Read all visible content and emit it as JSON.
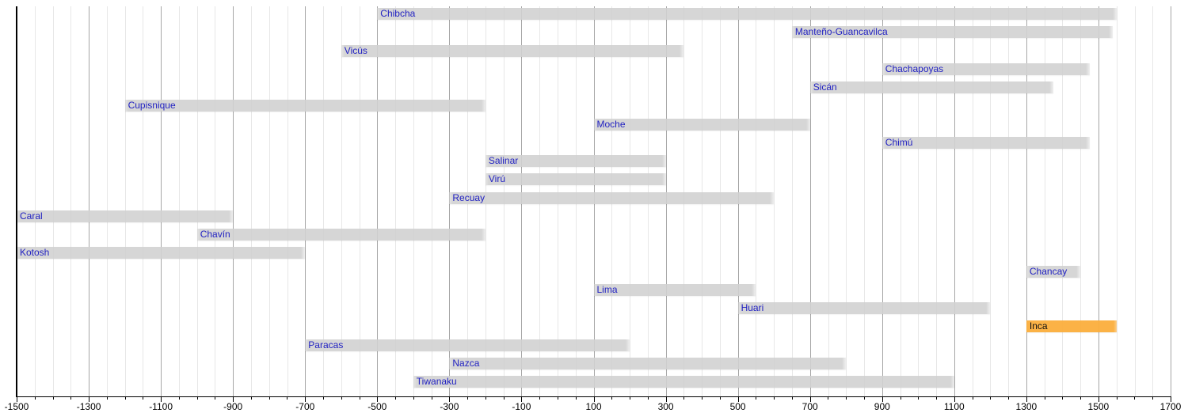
{
  "chart_data": {
    "type": "bar",
    "variant": "horizontal-timeline-gantt",
    "title": "",
    "xlabel": "",
    "ylabel": "",
    "legend": "none",
    "grid": "vertical, minor every 50 years (light), major every 200 years (darker)",
    "axis": {
      "min": -1500,
      "max": 1700,
      "major_tick_step": 200,
      "minor_tick_step": 50,
      "tick_labels": [
        "-1500",
        "-1300",
        "-1100",
        "-900",
        "-700",
        "-500",
        "-300",
        "-100",
        "100",
        "300",
        "500",
        "700",
        "900",
        "1100",
        "1300",
        "1500",
        "1700"
      ]
    },
    "cultures": [
      {
        "name": "Chibcha",
        "start": -500,
        "end": 1550,
        "highlight": false
      },
      {
        "name": "Manteño-Guancavilca",
        "start": 650,
        "end": 1540,
        "highlight": false
      },
      {
        "name": "Vicús",
        "start": -600,
        "end": 350,
        "highlight": false
      },
      {
        "name": "Chachapoyas",
        "start": 900,
        "end": 1475,
        "highlight": false
      },
      {
        "name": "Sicán",
        "start": 700,
        "end": 1375,
        "highlight": false
      },
      {
        "name": "Cupisnique",
        "start": -1200,
        "end": -200,
        "highlight": false
      },
      {
        "name": "Moche",
        "start": 100,
        "end": 700,
        "highlight": false
      },
      {
        "name": "Chimú",
        "start": 900,
        "end": 1475,
        "highlight": false
      },
      {
        "name": "Salinar",
        "start": -200,
        "end": 300,
        "highlight": false
      },
      {
        "name": "Virú",
        "start": -200,
        "end": 300,
        "highlight": false
      },
      {
        "name": "Recuay",
        "start": -300,
        "end": 600,
        "highlight": false
      },
      {
        "name": "Caral",
        "start": -1500,
        "end": -900,
        "highlight": false
      },
      {
        "name": "Chavín",
        "start": -1000,
        "end": -200,
        "highlight": false
      },
      {
        "name": "Kotosh",
        "start": -1500,
        "end": -700,
        "highlight": false
      },
      {
        "name": "Chancay",
        "start": 1300,
        "end": 1450,
        "highlight": false
      },
      {
        "name": "Lima",
        "start": 100,
        "end": 550,
        "highlight": false
      },
      {
        "name": "Huari",
        "start": 500,
        "end": 1200,
        "highlight": false
      },
      {
        "name": "Inca",
        "start": 1300,
        "end": 1550,
        "highlight": true
      },
      {
        "name": "Paracas",
        "start": -700,
        "end": 200,
        "highlight": false
      },
      {
        "name": "Nazca",
        "start": -300,
        "end": 800,
        "highlight": false
      },
      {
        "name": "Tiwanaku",
        "start": -400,
        "end": 1100,
        "highlight": false
      }
    ],
    "colors": {
      "background": "#ffffff",
      "bar_fill": "#d9d9d9",
      "highlight_fill": "#fbae3c",
      "label_color": "#2222c2",
      "highlight_label_color": "#101010",
      "axis_color": "#000000",
      "major_gridline": "#a6a6a6",
      "minor_gridline": "#e7e7e7"
    }
  }
}
